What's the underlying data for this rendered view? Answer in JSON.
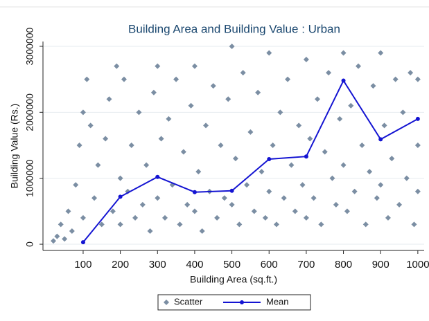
{
  "chart_data": {
    "type": "scatter",
    "title": "Building Area and Building Value : Urban",
    "x_label": "Building Area (sq.ft.)",
    "y_label": "Building Value (Rs.)",
    "xlim": [
      -8,
      1017
    ],
    "ylim": [
      -94000,
      3073000
    ],
    "xticks": [
      100,
      200,
      300,
      400,
      500,
      600,
      700,
      800,
      900,
      1000
    ],
    "yticks": [
      0,
      1000000,
      2000000,
      3000000
    ],
    "grid": true,
    "legend": "bottom",
    "series": [
      {
        "name": "Scatter",
        "mode": "markers",
        "color": "#7b8ea3",
        "x": [
          20,
          30,
          40,
          50,
          60,
          70,
          80,
          90,
          100,
          110,
          100,
          120,
          130,
          140,
          150,
          160,
          170,
          180,
          190,
          200,
          200,
          210,
          220,
          230,
          240,
          250,
          260,
          270,
          280,
          290,
          300,
          300,
          310,
          320,
          330,
          340,
          350,
          360,
          370,
          380,
          390,
          400,
          400,
          410,
          420,
          430,
          440,
          450,
          460,
          470,
          480,
          490,
          500,
          500,
          510,
          520,
          530,
          540,
          550,
          560,
          570,
          580,
          590,
          600,
          600,
          610,
          620,
          630,
          640,
          650,
          660,
          670,
          680,
          690,
          700,
          700,
          710,
          720,
          730,
          740,
          750,
          760,
          770,
          780,
          790,
          800,
          800,
          810,
          820,
          830,
          840,
          850,
          860,
          870,
          880,
          890,
          900,
          900,
          910,
          920,
          930,
          940,
          950,
          960,
          970,
          980,
          990,
          1000,
          1000,
          1000
        ],
        "values": [
          50000,
          120000,
          300000,
          80000,
          500000,
          200000,
          900000,
          1500000,
          2000000,
          2500000,
          400000,
          1800000,
          700000,
          1200000,
          300000,
          1600000,
          2200000,
          500000,
          2700000,
          1000000,
          300000,
          2500000,
          800000,
          1500000,
          400000,
          2000000,
          600000,
          1200000,
          200000,
          2300000,
          2700000,
          700000,
          1600000,
          400000,
          1900000,
          900000,
          2500000,
          300000,
          1400000,
          600000,
          2100000,
          2700000,
          500000,
          1100000,
          200000,
          1800000,
          800000,
          2400000,
          400000,
          1500000,
          700000,
          2200000,
          3000000,
          600000,
          1300000,
          300000,
          2600000,
          900000,
          1700000,
          500000,
          2300000,
          1100000,
          400000,
          2900000,
          800000,
          1500000,
          300000,
          2000000,
          700000,
          2500000,
          1200000,
          500000,
          1800000,
          900000,
          2800000,
          400000,
          1600000,
          700000,
          2200000,
          300000,
          1400000,
          2600000,
          1000000,
          600000,
          1900000,
          2900000,
          1200000,
          500000,
          2100000,
          800000,
          2700000,
          1500000,
          300000,
          1100000,
          2400000,
          700000,
          2900000,
          900000,
          1800000,
          400000,
          1300000,
          2500000,
          600000,
          2000000,
          1000000,
          2600000,
          300000,
          2500000,
          800000,
          1500000
        ]
      },
      {
        "name": "Mean",
        "mode": "lines+markers",
        "color": "#1414d2",
        "x": [
          100,
          200,
          300,
          400,
          500,
          600,
          700,
          800,
          900,
          1000
        ],
        "values": [
          30000,
          720000,
          1020000,
          790000,
          810000,
          1290000,
          1330000,
          2480000,
          1590000,
          1900000
        ]
      }
    ]
  }
}
